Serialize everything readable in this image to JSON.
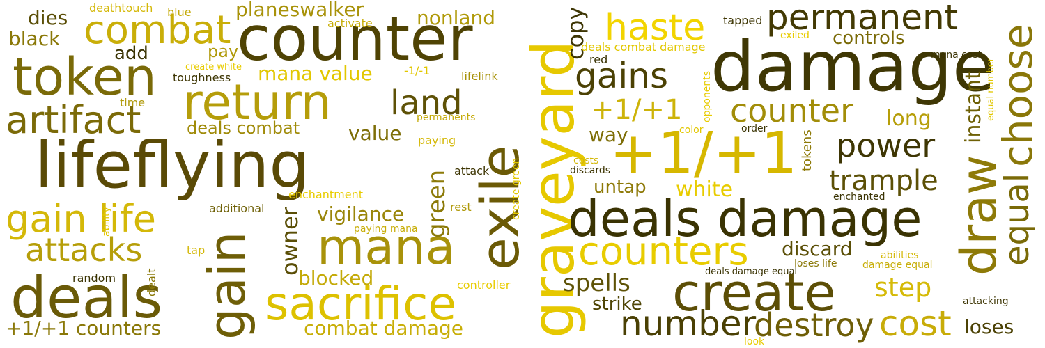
{
  "words": [
    {
      "text": "lifeflying",
      "color": "#5a4a06"
    },
    {
      "text": "damage",
      "color": "#3f3704"
    },
    {
      "text": "counter",
      "color": "#4f4304"
    },
    {
      "text": "+1/+1",
      "color": "#d6b700"
    },
    {
      "text": "graveyard",
      "color": "#e6c800"
    },
    {
      "text": "deals damage",
      "color": "#3a3303"
    },
    {
      "text": "exile",
      "color": "#6b5a06"
    },
    {
      "text": "token",
      "color": "#7a6a08"
    },
    {
      "text": "deals",
      "color": "#6a5a07"
    },
    {
      "text": "mana",
      "color": "#a8920a"
    },
    {
      "text": "create",
      "color": "#5c4e06"
    },
    {
      "text": "sacrifice",
      "color": "#ddc100"
    },
    {
      "text": "return",
      "color": "#b59d0a"
    },
    {
      "text": "gain",
      "color": "#6e5e07"
    },
    {
      "text": "draw",
      "color": "#8e7a08"
    },
    {
      "text": "combat",
      "color": "#c9ae08"
    },
    {
      "text": "permanent",
      "color": "#433a04"
    },
    {
      "text": "artifact",
      "color": "#7b6a08"
    },
    {
      "text": "counters",
      "color": "#e8cc00"
    },
    {
      "text": "choose",
      "color": "#8a7709"
    },
    {
      "text": "gain life",
      "color": "#d4b808"
    },
    {
      "text": "number",
      "color": "#4a4004"
    },
    {
      "text": "cost",
      "color": "#c8ac08"
    },
    {
      "text": "destroy",
      "color": "#6e5e07"
    },
    {
      "text": "haste",
      "color": "#f2d400"
    },
    {
      "text": "equal",
      "color": "#7a6a07"
    },
    {
      "text": "counter",
      "color": "#a28d09"
    },
    {
      "text": "land",
      "color": "#5e5106"
    },
    {
      "text": "attacks",
      "color": "#b69e09"
    },
    {
      "text": "gains",
      "color": "#4b4104"
    },
    {
      "text": "power",
      "color": "#3e3604"
    },
    {
      "text": "+1/+1",
      "color": "#cdb309"
    },
    {
      "text": "trample",
      "color": "#5c5006"
    },
    {
      "text": "step",
      "color": "#d5ba08"
    },
    {
      "text": "spells",
      "color": "#5e5206"
    },
    {
      "text": "combat damage",
      "color": "#c8ae08"
    },
    {
      "text": "+1/+1 counters",
      "color": "#8a7808"
    },
    {
      "text": "planeswalker",
      "color": "#a89209"
    },
    {
      "text": "blocked",
      "color": "#c4aa08"
    },
    {
      "text": "mana value",
      "color": "#e2c700"
    },
    {
      "text": "owner",
      "color": "#5a4e06"
    },
    {
      "text": "green",
      "color": "#8c7a08"
    },
    {
      "text": "vigilance",
      "color": "#9a860a"
    },
    {
      "text": "nonland",
      "color": "#b09a0a"
    },
    {
      "text": "deals combat",
      "color": "#a08b09"
    },
    {
      "text": "value",
      "color": "#7e6e07"
    },
    {
      "text": "copy",
      "color": "#3e3604"
    },
    {
      "text": "instant",
      "color": "#6e6006"
    },
    {
      "text": "long",
      "color": "#b69e09"
    },
    {
      "text": "white",
      "color": "#e8cc00"
    },
    {
      "text": "untap",
      "color": "#8e7a08"
    },
    {
      "text": "way",
      "color": "#7e6e07"
    },
    {
      "text": "discard",
      "color": "#5a4e06"
    },
    {
      "text": "strike",
      "color": "#4f4505"
    },
    {
      "text": "loses",
      "color": "#4c4205"
    },
    {
      "text": "controls",
      "color": "#7a6a07"
    },
    {
      "text": "tokens",
      "color": "#8e7a08"
    },
    {
      "text": "dies",
      "color": "#5a4e06"
    },
    {
      "text": "black",
      "color": "#8a7808"
    },
    {
      "text": "add",
      "color": "#3a3303"
    },
    {
      "text": "pay",
      "color": "#b09a0a"
    },
    {
      "text": "activate",
      "color": "#c8ae08"
    },
    {
      "text": "deathtouch",
      "color": "#d4b808"
    },
    {
      "text": "blue",
      "color": "#c4aa08"
    },
    {
      "text": "create white",
      "color": "#e8cc00"
    },
    {
      "text": "toughness",
      "color": "#3e3604"
    },
    {
      "text": "time",
      "color": "#b09a0a"
    },
    {
      "text": "-1/-1",
      "color": "#e2c700"
    },
    {
      "text": "lifelink",
      "color": "#a89209"
    },
    {
      "text": "permanents",
      "color": "#c4aa08"
    },
    {
      "text": "paying",
      "color": "#d4b808"
    },
    {
      "text": "attack",
      "color": "#3e3604"
    },
    {
      "text": "enchantment",
      "color": "#e8cc00"
    },
    {
      "text": "additional",
      "color": "#6e6006"
    },
    {
      "text": "rest",
      "color": "#b09a0a"
    },
    {
      "text": "paying mana",
      "color": "#c8ae08"
    },
    {
      "text": "ability",
      "color": "#e2c700"
    },
    {
      "text": "tap",
      "color": "#d4b808"
    },
    {
      "text": "random",
      "color": "#3a3303"
    },
    {
      "text": "dealt",
      "color": "#8a7808"
    },
    {
      "text": "controller",
      "color": "#e8cc00"
    },
    {
      "text": "create green",
      "color": "#e2c700"
    },
    {
      "text": "deals combat damage",
      "color": "#e2c700"
    },
    {
      "text": "red",
      "color": "#3a3303"
    },
    {
      "text": "exiled",
      "color": "#e8cc00"
    },
    {
      "text": "tapped",
      "color": "#3e3604"
    },
    {
      "text": "mana cost",
      "color": "#3a3303"
    },
    {
      "text": "opponents",
      "color": "#e8cc00"
    },
    {
      "text": "color",
      "color": "#e2c700"
    },
    {
      "text": "order",
      "color": "#3a3303"
    },
    {
      "text": "costs",
      "color": "#d4b808"
    },
    {
      "text": "discards",
      "color": "#3e3604"
    },
    {
      "text": "enchanted",
      "color": "#3a3303"
    },
    {
      "text": "equal number",
      "color": "#e2c700"
    },
    {
      "text": "abilities",
      "color": "#d4b808"
    },
    {
      "text": "damage equal",
      "color": "#c8ae08"
    },
    {
      "text": "loses life",
      "color": "#8a7808"
    },
    {
      "text": "deals damage equal",
      "color": "#3a3303"
    },
    {
      "text": "attacking",
      "color": "#3e3604"
    },
    {
      "text": "look",
      "color": "#e8cc00"
    }
  ]
}
